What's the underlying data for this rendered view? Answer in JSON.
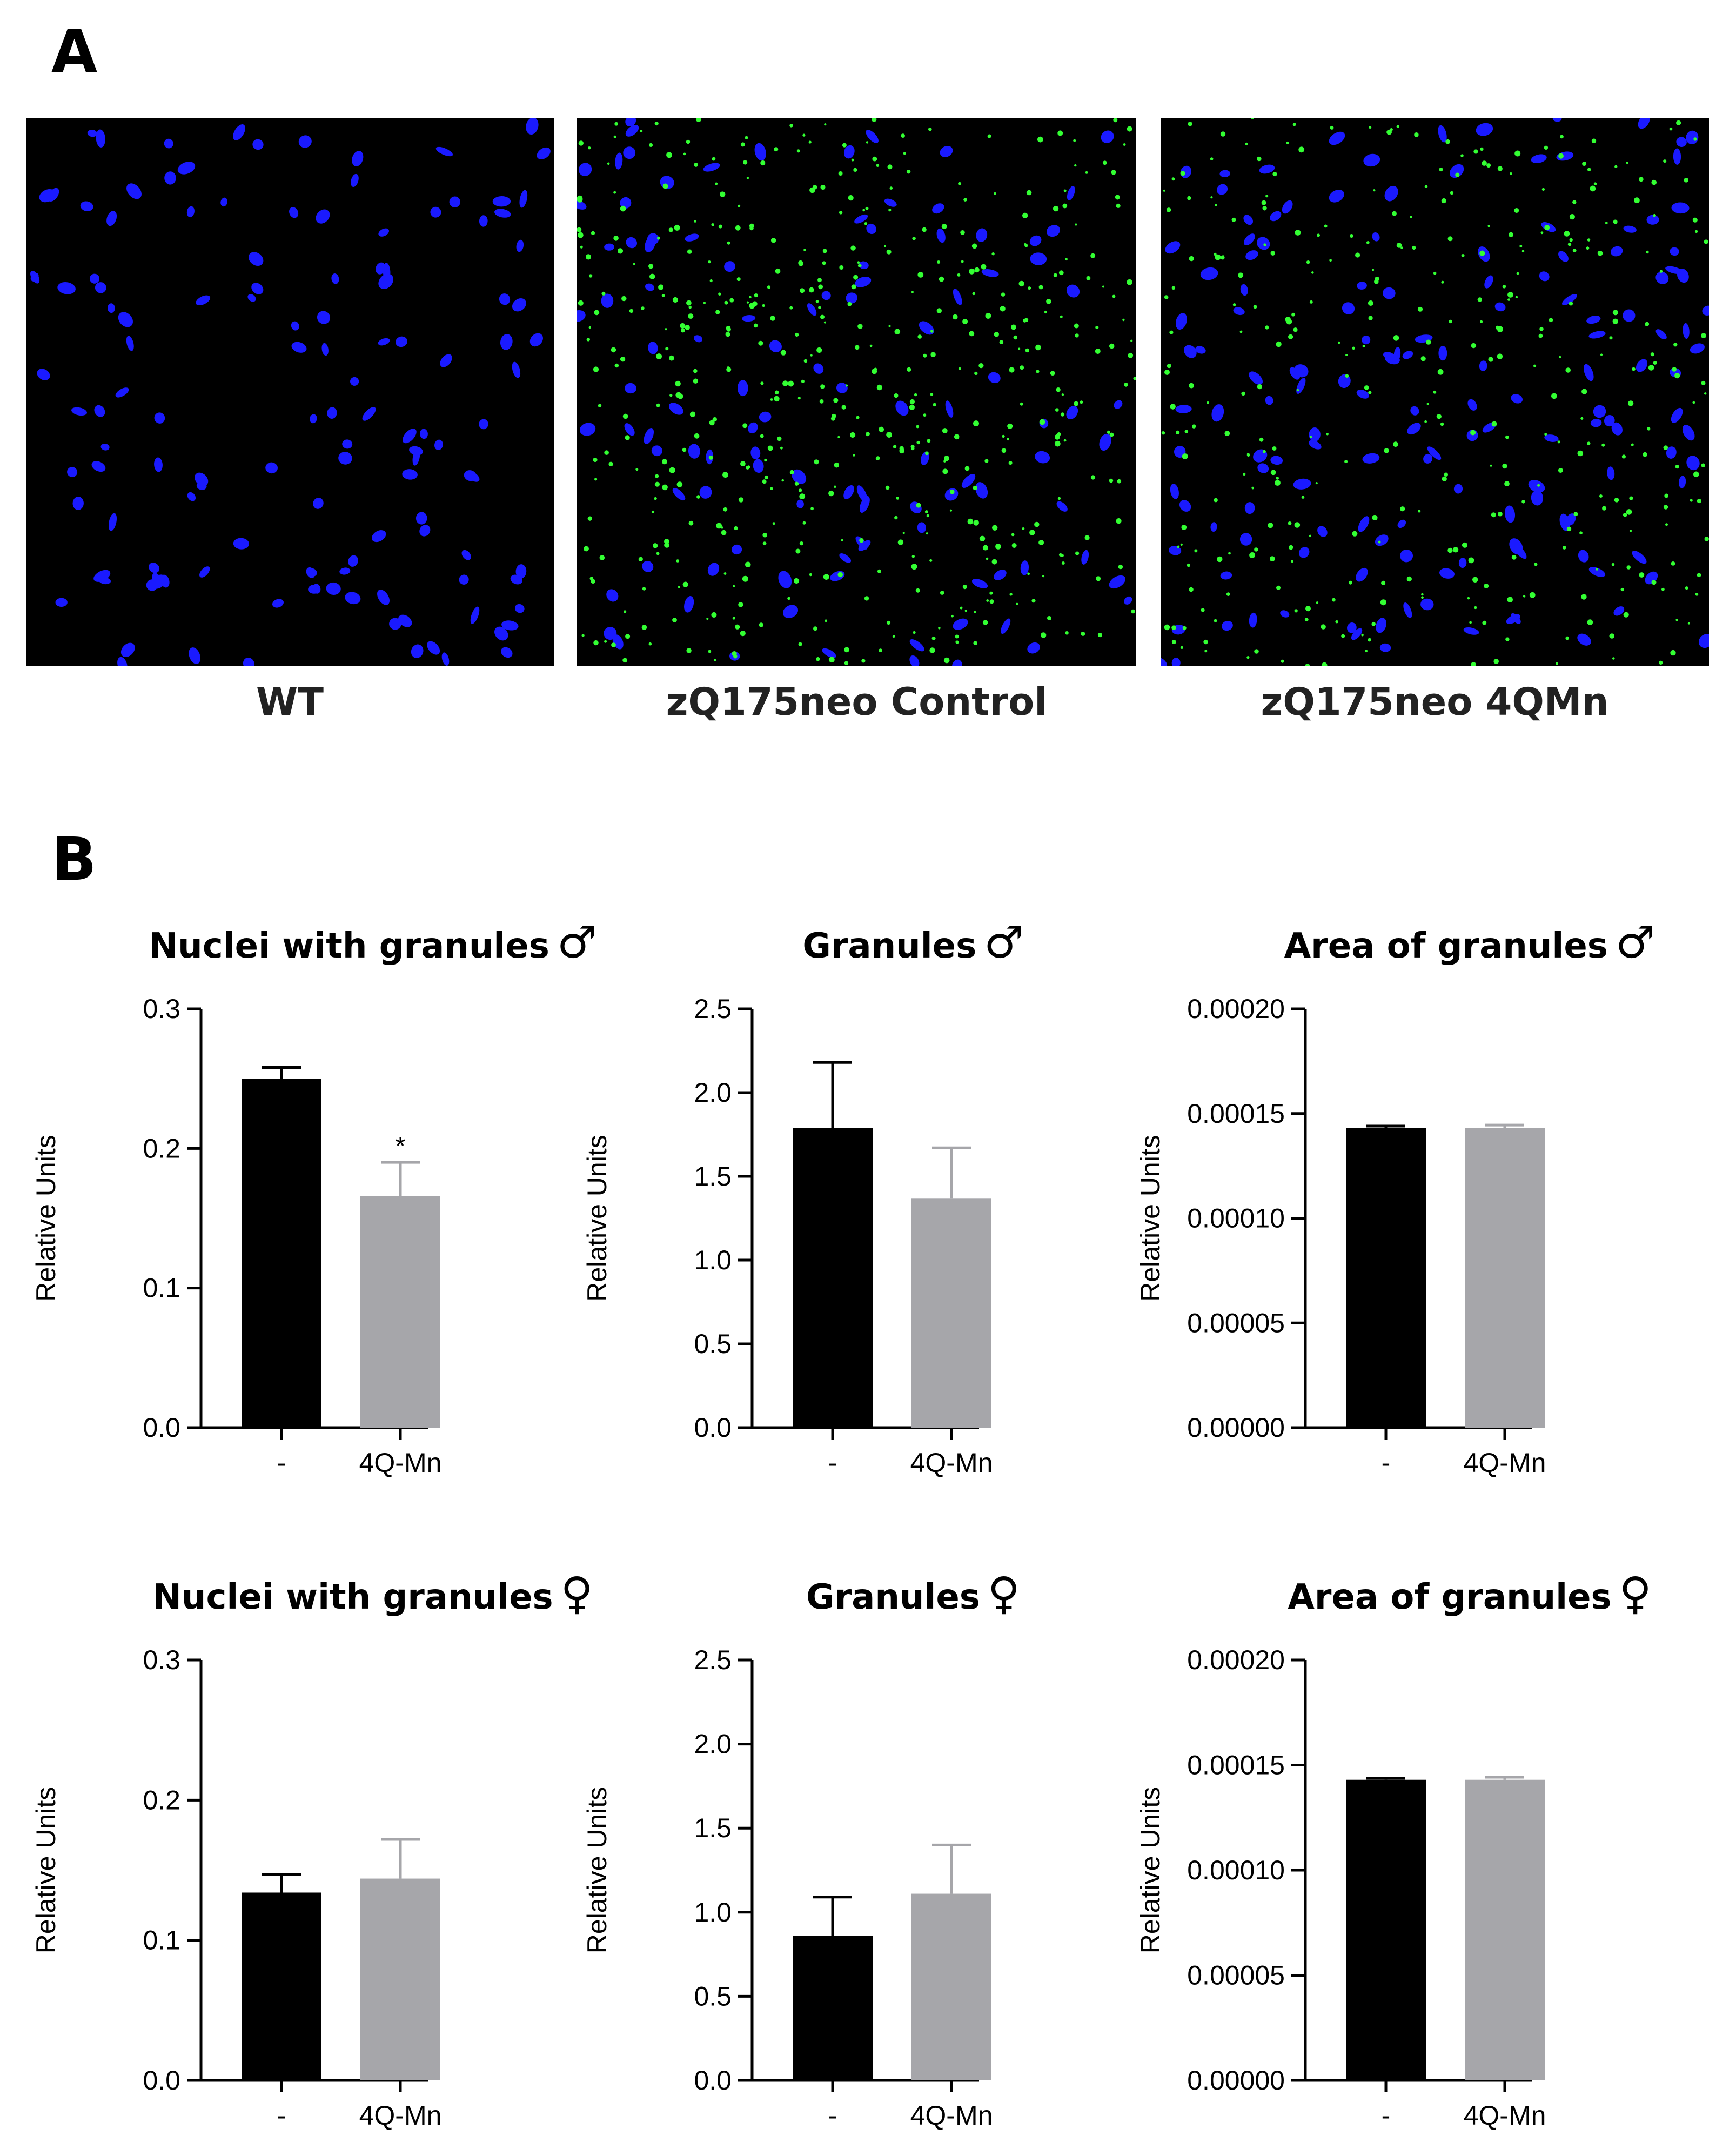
{
  "panels": {
    "a_letter": "A",
    "b_letter": "B"
  },
  "micrographs": [
    {
      "label": "WT",
      "nuclei_count": 130,
      "granule_count": 0,
      "nuclei_color": "#1a1aff",
      "granule_color": "#33ff33",
      "background": "#000000"
    },
    {
      "label": "zQ175neo Control",
      "nuclei_count": 110,
      "granule_count": 520,
      "nuclei_color": "#1a1aff",
      "granule_color": "#33ff33",
      "background": "#000000"
    },
    {
      "label": "zQ175neo 4QMn",
      "nuclei_count": 150,
      "granule_count": 360,
      "nuclei_color": "#1a1aff",
      "granule_color": "#33ff33",
      "background": "#000000"
    }
  ],
  "sex_symbols": {
    "male": "♂",
    "female": "♀"
  },
  "bar_colors": [
    "#000000",
    "#a6a6aa"
  ],
  "chart_data": [
    {
      "type": "bar",
      "title": "Nuclei with granules",
      "sex": "male",
      "ylabel": "Relative Units",
      "categories": [
        "-",
        "4Q-Mn"
      ],
      "values": [
        0.25,
        0.166
      ],
      "errors": [
        0.008,
        0.024
      ],
      "significance": [
        "",
        "*"
      ],
      "ylim": [
        0,
        0.3
      ],
      "yticks": [
        "0.0",
        "0.1",
        "0.2",
        "0.3"
      ]
    },
    {
      "type": "bar",
      "title": "Granules",
      "sex": "male",
      "ylabel": "Relative Units",
      "categories": [
        "-",
        "4Q-Mn"
      ],
      "values": [
        1.79,
        1.37
      ],
      "errors": [
        0.39,
        0.3
      ],
      "significance": [
        "",
        ""
      ],
      "ylim": [
        0,
        2.5
      ],
      "yticks": [
        "0.0",
        "0.5",
        "1.0",
        "1.5",
        "2.0",
        "2.5"
      ]
    },
    {
      "type": "bar",
      "title": "Area of granules",
      "sex": "male",
      "ylabel": "Relative Units",
      "categories": [
        "-",
        "4Q-Mn"
      ],
      "values": [
        0.000143,
        0.000143
      ],
      "errors": [
        1e-06,
        1.5e-06
      ],
      "significance": [
        "",
        ""
      ],
      "ylim": [
        0,
        0.0002
      ],
      "yticks": [
        "0.00000",
        "0.00005",
        "0.00010",
        "0.00015",
        "0.00020"
      ]
    },
    {
      "type": "bar",
      "title": "Nuclei with granules",
      "sex": "female",
      "ylabel": "Relative Units",
      "categories": [
        "-",
        "4Q-Mn"
      ],
      "values": [
        0.134,
        0.144
      ],
      "errors": [
        0.013,
        0.028
      ],
      "significance": [
        "",
        ""
      ],
      "ylim": [
        0,
        0.3
      ],
      "yticks": [
        "0.0",
        "0.1",
        "0.2",
        "0.3"
      ]
    },
    {
      "type": "bar",
      "title": "Granules",
      "sex": "female",
      "ylabel": "Relative Units",
      "categories": [
        "-",
        "4Q-Mn"
      ],
      "values": [
        0.86,
        1.11
      ],
      "errors": [
        0.23,
        0.29
      ],
      "significance": [
        "",
        ""
      ],
      "ylim": [
        0,
        2.5
      ],
      "yticks": [
        "0.0",
        "0.5",
        "1.0",
        "1.5",
        "2.0",
        "2.5"
      ]
    },
    {
      "type": "bar",
      "title": "Area of granules",
      "sex": "female",
      "ylabel": "Relative Units",
      "categories": [
        "-",
        "4Q-Mn"
      ],
      "values": [
        0.000143,
        0.000143
      ],
      "errors": [
        7e-07,
        1.2e-06
      ],
      "significance": [
        "",
        ""
      ],
      "ylim": [
        0,
        0.0002
      ],
      "yticks": [
        "0.00000",
        "0.00005",
        "0.00010",
        "0.00015",
        "0.00020"
      ]
    }
  ]
}
